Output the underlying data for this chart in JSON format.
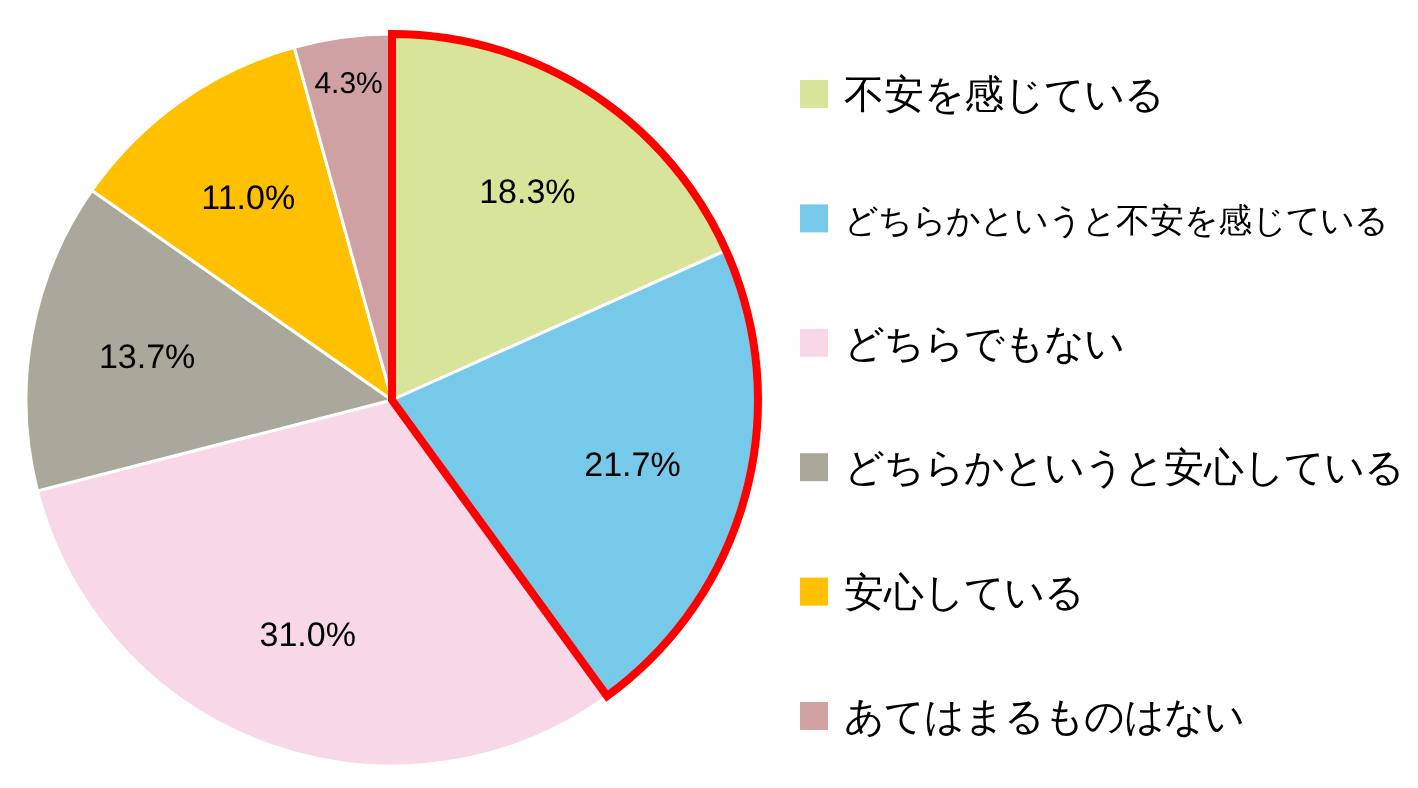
{
  "chart_data": {
    "type": "pie",
    "categories": [
      "不安を感じている",
      "どちらかというと不安を感じている",
      "どちらでもない",
      "どちらかというと安心している",
      "安心している",
      "あてはまるものはない"
    ],
    "values": [
      18.3,
      21.7,
      31.0,
      13.7,
      11.0,
      4.3
    ],
    "colors": [
      "#d7e49a",
      "#77c9ea",
      "#f8d8e6",
      "#aaa89a",
      "#ffc000",
      "#d0a1a3"
    ],
    "value_labels": [
      "18.3%",
      "21.7%",
      "31.0%",
      "13.7%",
      "11.0%",
      "4.3%"
    ],
    "legend": "right"
  }
}
